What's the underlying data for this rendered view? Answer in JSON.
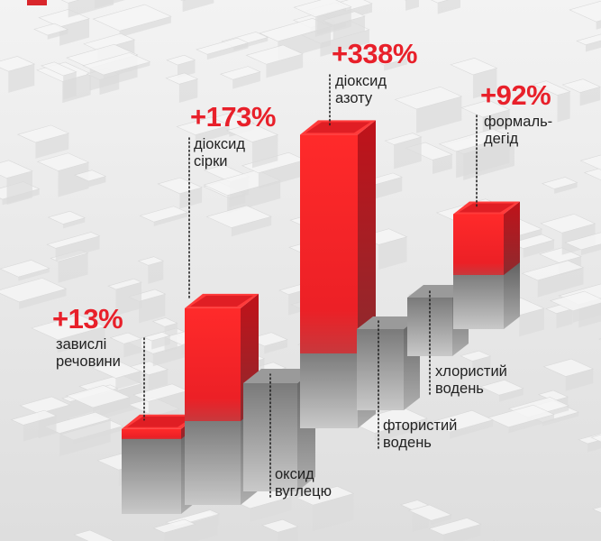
{
  "chart_data": {
    "type": "bar",
    "title": "",
    "categories": [
      "завислі речовини",
      "діоксид сірки",
      "оксид вуглецю",
      "діоксид азоту",
      "фтористий водень",
      "хлористий водень",
      "формальдегід"
    ],
    "bars": [
      {
        "name_lines": [
          "завислі",
          "речовини"
        ],
        "change_label": "+13%",
        "value": 13
      },
      {
        "name_lines": [
          "діоксид",
          "сірки"
        ],
        "change_label": "+173%",
        "value": 173
      },
      {
        "name_lines": [
          "оксид",
          "вуглецю"
        ],
        "change_label": "",
        "value": null
      },
      {
        "name_lines": [
          "діоксид",
          "азоту"
        ],
        "change_label": "+338%",
        "value": 338
      },
      {
        "name_lines": [
          "фтористий",
          "водень"
        ],
        "change_label": "",
        "value": null
      },
      {
        "name_lines": [
          "хлористий",
          "водень"
        ],
        "change_label": "",
        "value": null
      },
      {
        "name_lines": [
          "формаль-",
          "дегід"
        ],
        "change_label": "+92%",
        "value": 92
      }
    ],
    "colors": {
      "increase": "#e8202a",
      "base": "#8c8c8c",
      "background": "#e9e9e9"
    },
    "legend": "none",
    "grid": false
  }
}
